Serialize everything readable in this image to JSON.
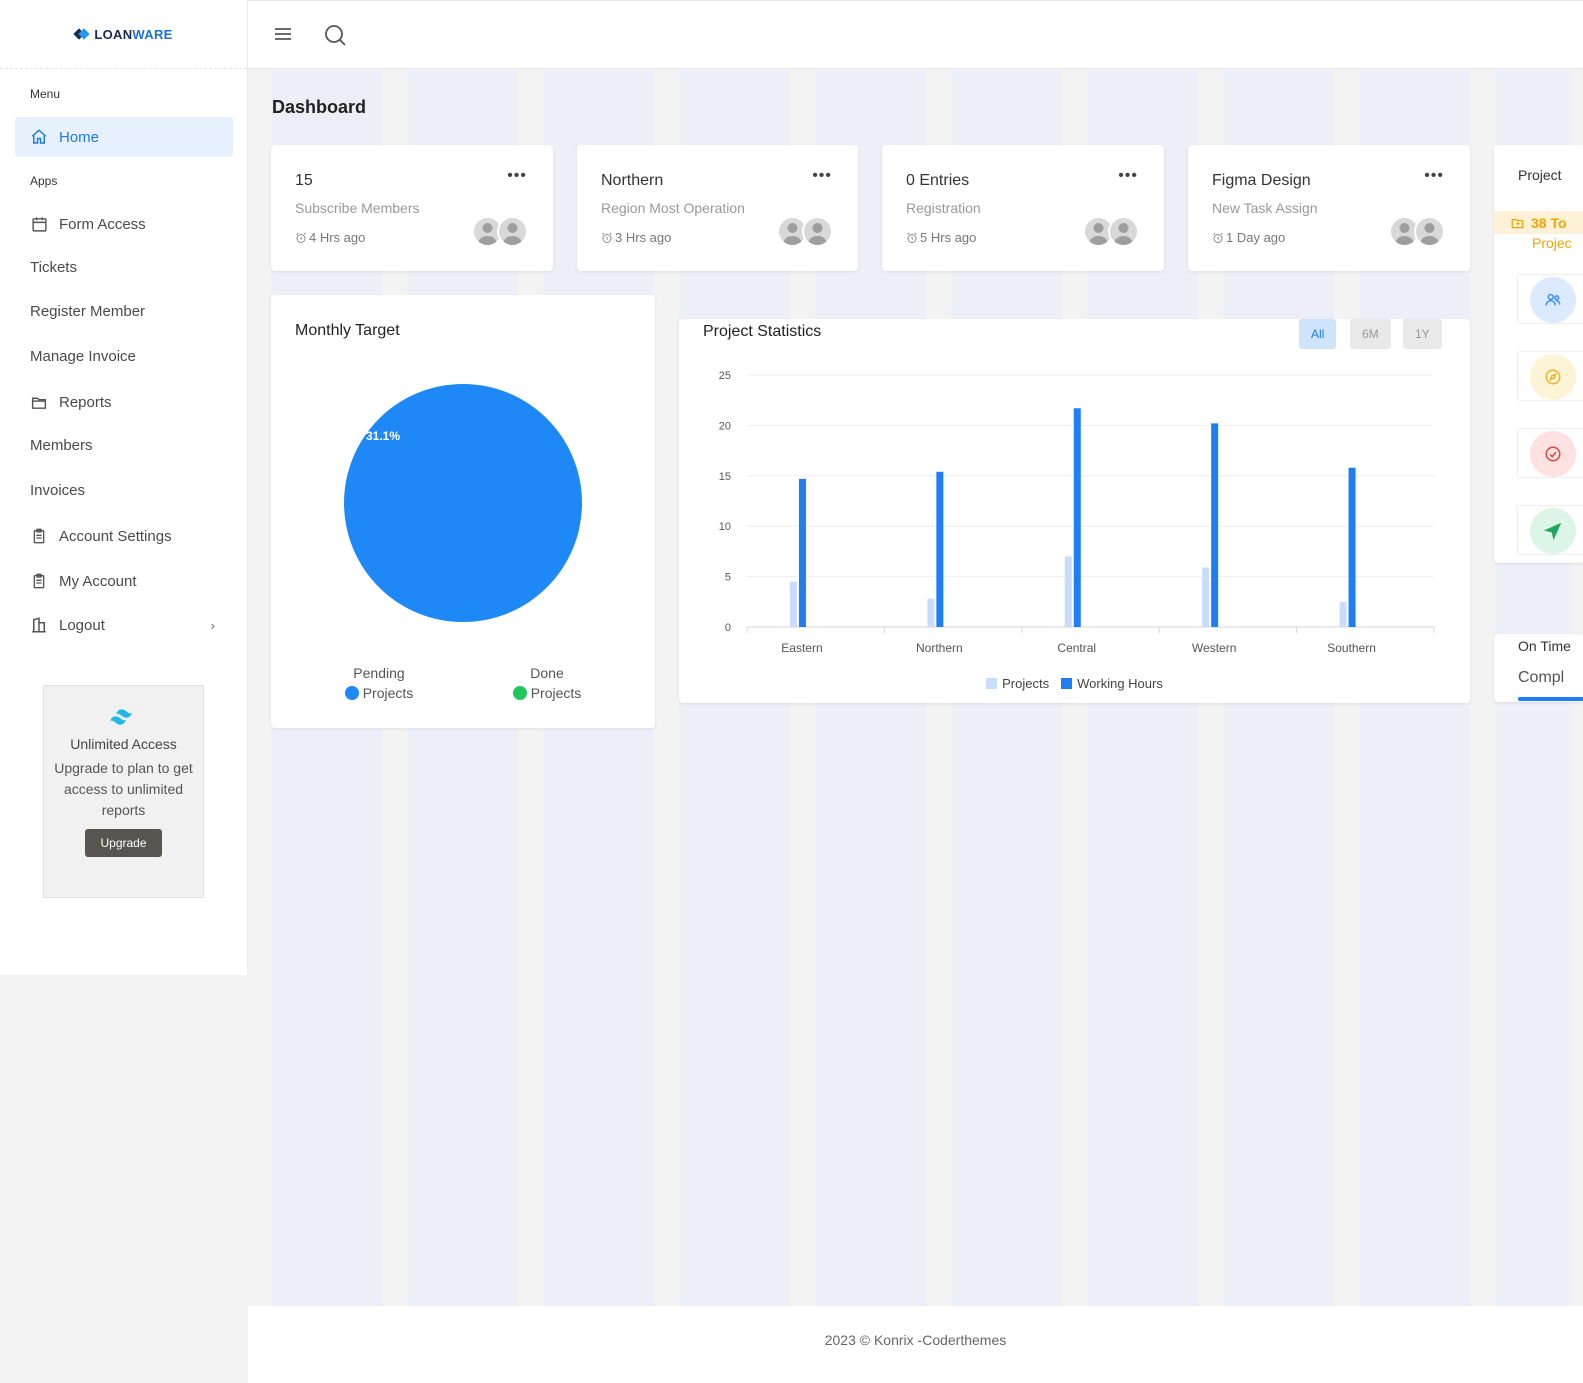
{
  "brand": {
    "name_part1": "LOAN",
    "name_part2": "WARE"
  },
  "sidebar": {
    "menu_title": "Menu",
    "apps_title": "Apps",
    "items": [
      {
        "label": "Home",
        "icon": "home-icon"
      },
      {
        "label": "Form Access",
        "icon": "calendar-icon"
      },
      {
        "label": "Tickets",
        "icon": ""
      },
      {
        "label": "Register Member",
        "icon": ""
      },
      {
        "label": "Manage Invoice",
        "icon": ""
      },
      {
        "label": "Reports",
        "icon": "folder-icon"
      },
      {
        "label": "Members",
        "icon": ""
      },
      {
        "label": "Invoices",
        "icon": ""
      },
      {
        "label": "Account Settings",
        "icon": "clipboard-icon"
      },
      {
        "label": "My Account",
        "icon": "clipboard-icon"
      },
      {
        "label": "Logout",
        "icon": "building-icon"
      }
    ],
    "logout_chevron": "›",
    "promo": {
      "title": "Unlimited Access",
      "text": "Upgrade to plan to get access to unlimited reports",
      "button": "Upgrade"
    }
  },
  "page": {
    "title": "Dashboard"
  },
  "stats": [
    {
      "title": "15",
      "sub": "Subscribe Members",
      "time": "4 Hrs ago"
    },
    {
      "title": "Northern",
      "sub": "Region Most Operation",
      "time": "3 Hrs ago"
    },
    {
      "title": "0 Entries",
      "sub": "Registration",
      "time": "5 Hrs ago"
    },
    {
      "title": "Figma Design",
      "sub": "New Task Assign",
      "time": "1 Day ago"
    }
  ],
  "stat_menu": "•••",
  "monthly": {
    "title": "Monthly Target",
    "pie_label": "31.1%",
    "legend": [
      {
        "label": "Pending",
        "sub": "Projects",
        "color": "#1e88f7"
      },
      {
        "label": "Done",
        "sub": "Projects",
        "color": "#22c55e"
      }
    ]
  },
  "project_stats": {
    "title": "Project Statistics",
    "ranges": [
      "All",
      "6M",
      "1Y"
    ],
    "active_range": "All"
  },
  "chart_data": {
    "type": "bar",
    "categories": [
      "Eastern",
      "Northern",
      "Central",
      "Western",
      "Southern"
    ],
    "series": [
      {
        "name": "Projects",
        "values": [
          4.5,
          2.8,
          7.0,
          5.9,
          2.5
        ],
        "color": "#c9dcfa"
      },
      {
        "name": "Working Hours",
        "values": [
          14.7,
          15.4,
          21.7,
          20.2,
          15.8
        ],
        "color": "#1e7ef2"
      }
    ],
    "ylim": [
      0,
      25
    ],
    "yticks": [
      0,
      5,
      10,
      15,
      20,
      25
    ],
    "grid": true,
    "legend": "bottom"
  },
  "right_panel": {
    "title": "Project",
    "highlight": "38 To",
    "highlight_sub": "Projec",
    "icons": [
      {
        "name": "users-icon",
        "color": "#3b8ff3",
        "bg": "#dbeafe"
      },
      {
        "name": "compass-icon",
        "color": "#f0b429",
        "bg": "#fdf3d6"
      },
      {
        "name": "check-circle-icon",
        "color": "#e0443e",
        "bg": "#fde2e1"
      },
      {
        "name": "send-icon",
        "color": "#22a55e",
        "bg": "#dcf5e6"
      }
    ],
    "on_time_label": "On Time",
    "complete_label": "Compl",
    "progress_color": "#1e7ef2"
  },
  "footer": {
    "text": "2023 © Konrix -Coderthemes"
  }
}
